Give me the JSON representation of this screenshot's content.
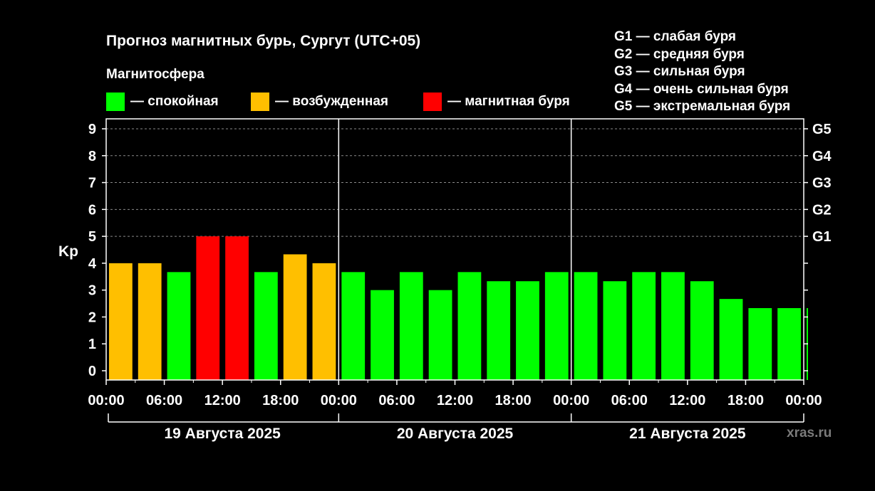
{
  "title": "Прогноз магнитных бурь, Сургут (UTC+05)",
  "subtitle": "Магнитосфера",
  "legend": [
    {
      "label": "— спокойная",
      "color": "#00ff00"
    },
    {
      "label": "— возбужденная",
      "color": "#ffbf00"
    },
    {
      "label": "— магнитная буря",
      "color": "#ff0000"
    }
  ],
  "g_legend": [
    "G1 — слабая буря",
    "G2 — средняя буря",
    "G3 — сильная буря",
    "G4 — очень сильная буря",
    "G5 — экстремальная буря"
  ],
  "watermark": "xras.ru",
  "chart_data": {
    "type": "bar",
    "ylabel": "Kp",
    "ylim": [
      0,
      9
    ],
    "yticks": [
      0,
      1,
      2,
      3,
      4,
      5,
      6,
      7,
      8,
      9
    ],
    "right_axis_labels": [
      {
        "kp": 5,
        "label": "G1"
      },
      {
        "kp": 6,
        "label": "G2"
      },
      {
        "kp": 7,
        "label": "G3"
      },
      {
        "kp": 8,
        "label": "G4"
      },
      {
        "kp": 9,
        "label": "G5"
      }
    ],
    "grid": "horizontal dashed at Kp 5-9",
    "x_tick_labels": [
      "00:00",
      "06:00",
      "12:00",
      "18:00",
      "00:00",
      "06:00",
      "12:00",
      "18:00",
      "00:00",
      "06:00",
      "12:00",
      "18:00",
      "00:00"
    ],
    "day_labels": [
      "19 Августа 2025",
      "20 Августа 2025",
      "21 Августа 2025"
    ],
    "hours_per_bar": 3,
    "values": [
      4.0,
      4.0,
      3.67,
      5.0,
      5.0,
      3.67,
      4.33,
      4.0,
      3.67,
      3.0,
      3.67,
      3.0,
      3.67,
      3.33,
      3.33,
      3.67,
      3.67,
      3.33,
      3.67,
      3.67,
      3.33,
      2.67,
      2.33,
      2.33,
      2.33
    ],
    "colors": {
      "quiet": "#00ff00",
      "active": "#ffbf00",
      "storm": "#ff0000"
    }
  }
}
